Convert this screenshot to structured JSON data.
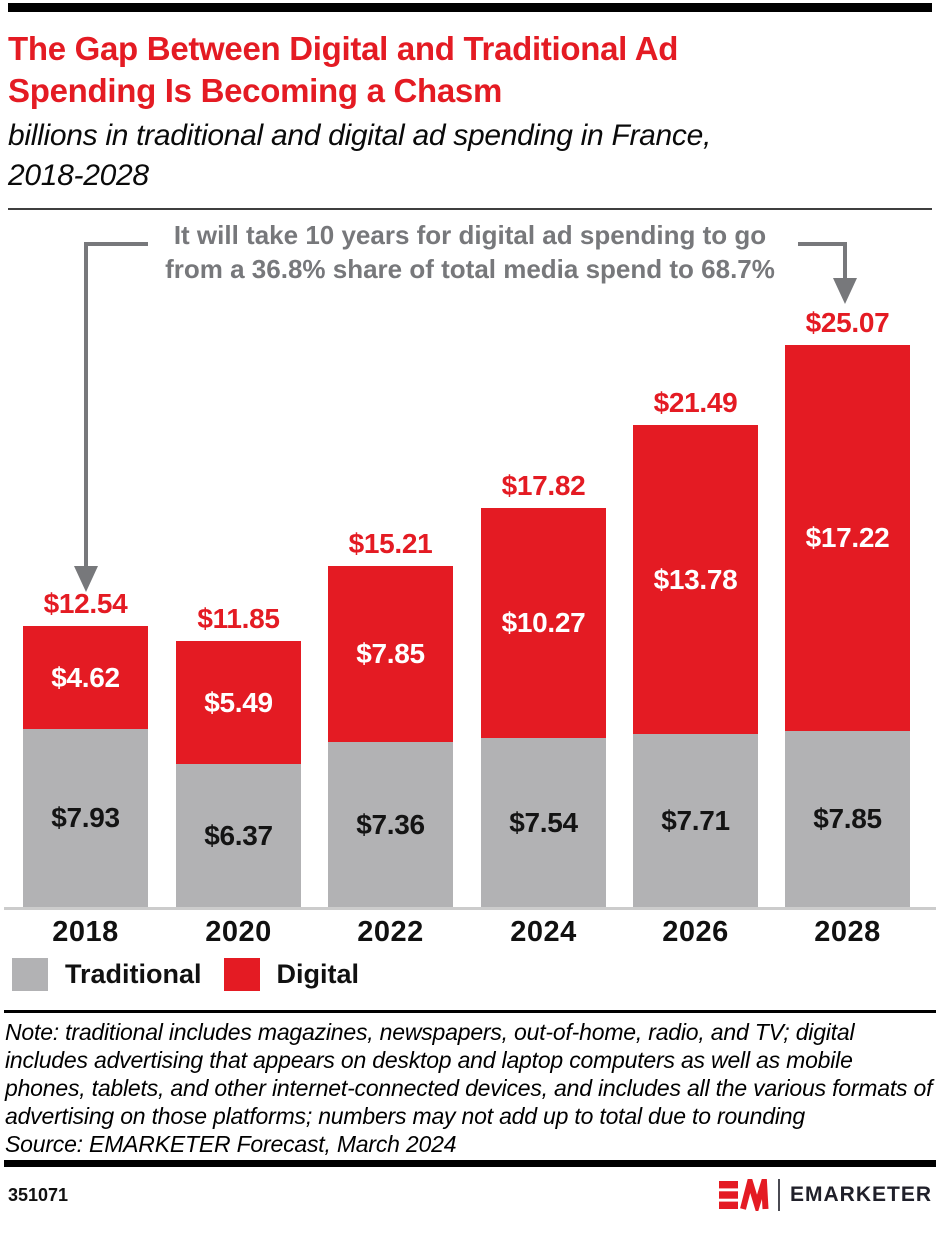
{
  "header": {
    "title_line1": "The Gap Between Digital and Traditional Ad",
    "title_line2": "Spending Is Becoming a Chasm",
    "subtitle_line1": "billions in traditional and digital ad spending in France,",
    "subtitle_line2": "2018-2028"
  },
  "annotation": {
    "line1": "It will take 10 years for digital ad spending to go",
    "line2": "from a 36.8% share of total media spend to 68.7%",
    "color": "#77787b"
  },
  "chart_data": {
    "type": "bar",
    "stacked": true,
    "title": "billions in traditional and digital ad spending in France, 2018-2028",
    "categories": [
      "2018",
      "2020",
      "2022",
      "2024",
      "2026",
      "2028"
    ],
    "series": [
      {
        "name": "Traditional",
        "color": "#b2b2b4",
        "values": [
          7.93,
          6.37,
          7.36,
          7.54,
          7.71,
          7.85
        ],
        "labels": [
          "$7.93",
          "$6.37",
          "$7.36",
          "$7.54",
          "$7.71",
          "$7.85"
        ]
      },
      {
        "name": "Digital",
        "color": "#e41b23",
        "values": [
          4.62,
          5.49,
          7.85,
          10.27,
          13.78,
          17.22
        ],
        "labels": [
          "$4.62",
          "$5.49",
          "$7.85",
          "$10.27",
          "$13.78",
          "$17.22"
        ]
      }
    ],
    "totals": [
      12.54,
      11.85,
      15.21,
      17.82,
      21.49,
      25.07
    ],
    "total_labels": [
      "$12.54",
      "$11.85",
      "$15.21",
      "$17.82",
      "$21.49",
      "$25.07"
    ],
    "xlabel": "",
    "ylabel": "",
    "ylim": [
      0,
      31
    ],
    "grid": false,
    "legend_position": "bottom-left",
    "annotation": "It will take 10 years for digital ad spending to go from a 36.8% share of total media spend to 68.7%"
  },
  "legend": {
    "items": [
      {
        "label": "Traditional",
        "color": "#b2b2b4"
      },
      {
        "label": "Digital",
        "color": "#e41b23"
      }
    ]
  },
  "note": {
    "text": "Note: traditional includes magazines, newspapers, out-of-home, radio, and TV; digital includes advertising that appears on desktop and laptop computers as well as mobile phones, tablets, and other internet-connected devices, and includes all the various formats of advertising on those platforms; numbers may not add up to total due to rounding",
    "source": "Source: EMARKETER Forecast, March 2024"
  },
  "footer": {
    "report_id": "351071",
    "brand_name": "EMARKETER"
  }
}
